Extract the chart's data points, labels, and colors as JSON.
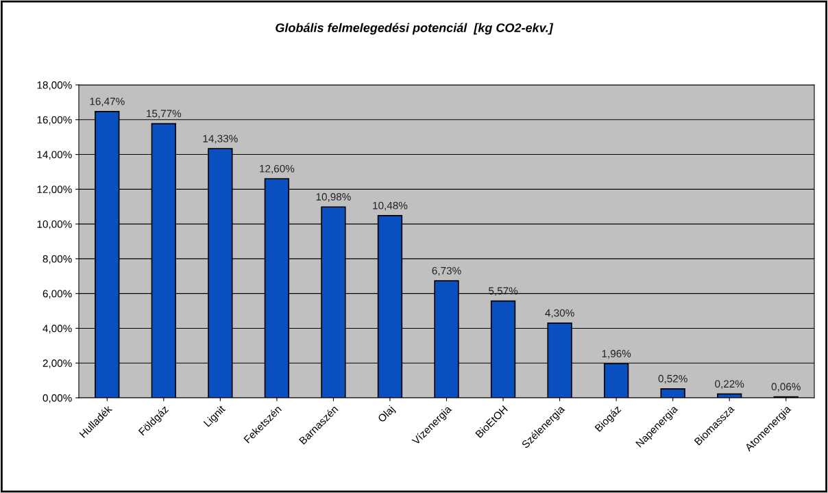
{
  "chart_data": {
    "type": "bar",
    "title": "Globális felmelegedési potenciál  [kg CO2-ekv.]",
    "categories": [
      "Hulladék",
      "Földgáz",
      "Lignit",
      "Feketszén",
      "Barnaszén",
      "Olaj",
      "Vízenergia",
      "BioEtOH",
      "Szélenergia",
      "Biogáz",
      "Napenergia",
      "Biomassza",
      "Atomenergia"
    ],
    "values": [
      16.47,
      15.77,
      14.33,
      12.6,
      10.98,
      10.48,
      6.73,
      5.57,
      4.3,
      1.96,
      0.52,
      0.22,
      0.06
    ],
    "value_labels": [
      "16,47%",
      "15,77%",
      "14,33%",
      "12,60%",
      "10,98%",
      "10,48%",
      "6,73%",
      "5,57%",
      "4,30%",
      "1,96%",
      "0,52%",
      "0,22%",
      "0,06%"
    ],
    "color": "#0a4fc0",
    "ylim": [
      0,
      18
    ],
    "yticks": [
      {
        "value": 0,
        "label": "0,00%"
      },
      {
        "value": 2,
        "label": "2,00%"
      },
      {
        "value": 4,
        "label": "4,00%"
      },
      {
        "value": 6,
        "label": "6,00%"
      },
      {
        "value": 8,
        "label": "8,00%"
      },
      {
        "value": 10,
        "label": "10,00%"
      },
      {
        "value": 12,
        "label": "12,00%"
      },
      {
        "value": 14,
        "label": "14,00%"
      },
      {
        "value": 16,
        "label": "16,00%"
      },
      {
        "value": 18,
        "label": "18,00%"
      }
    ],
    "grid": "y",
    "legend": false
  }
}
